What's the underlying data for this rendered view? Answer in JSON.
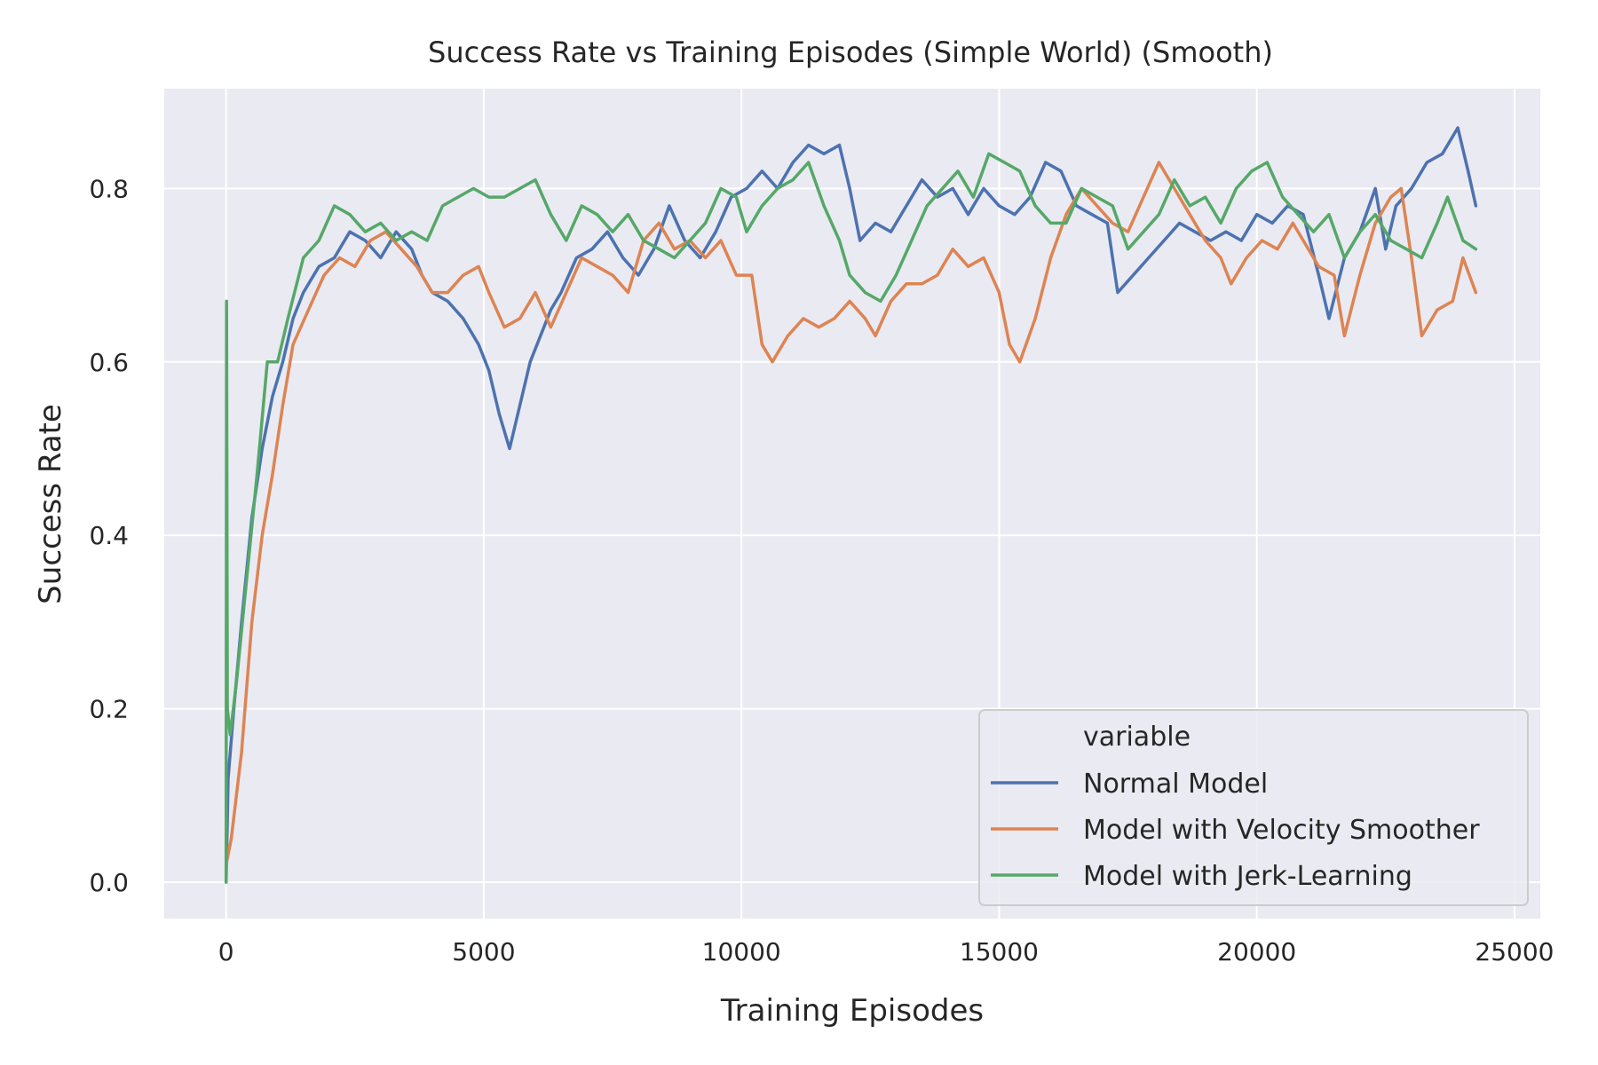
{
  "chart_data": {
    "type": "line",
    "title": "Success Rate vs Training Episodes (Simple World) (Smooth)",
    "xlabel": "Training Episodes",
    "ylabel": "Success Rate",
    "xlim": [
      -1200,
      25500
    ],
    "ylim": [
      -0.042,
      0.915
    ],
    "xticks": [
      0,
      5000,
      10000,
      15000,
      20000,
      25000
    ],
    "yticks": [
      0.0,
      0.2,
      0.4,
      0.6,
      0.8
    ],
    "grid": true,
    "background_color": "#eaeaf2",
    "legend": {
      "title": "variable",
      "placement": "lower-right"
    },
    "series": [
      {
        "name": "Normal Model",
        "color": "#4c72b0",
        "points": [
          [
            0,
            0.0
          ],
          [
            40,
            0.12
          ],
          [
            150,
            0.2
          ],
          [
            300,
            0.3
          ],
          [
            500,
            0.42
          ],
          [
            700,
            0.5
          ],
          [
            900,
            0.56
          ],
          [
            1100,
            0.6
          ],
          [
            1300,
            0.65
          ],
          [
            1500,
            0.68
          ],
          [
            1800,
            0.71
          ],
          [
            2100,
            0.72
          ],
          [
            2400,
            0.75
          ],
          [
            2700,
            0.74
          ],
          [
            3000,
            0.72
          ],
          [
            3300,
            0.75
          ],
          [
            3600,
            0.73
          ],
          [
            3800,
            0.7
          ],
          [
            4000,
            0.68
          ],
          [
            4300,
            0.67
          ],
          [
            4600,
            0.65
          ],
          [
            4900,
            0.62
          ],
          [
            5100,
            0.59
          ],
          [
            5300,
            0.54
          ],
          [
            5500,
            0.5
          ],
          [
            5700,
            0.55
          ],
          [
            5900,
            0.6
          ],
          [
            6100,
            0.63
          ],
          [
            6300,
            0.66
          ],
          [
            6500,
            0.68
          ],
          [
            6800,
            0.72
          ],
          [
            7100,
            0.73
          ],
          [
            7400,
            0.75
          ],
          [
            7700,
            0.72
          ],
          [
            8000,
            0.7
          ],
          [
            8300,
            0.73
          ],
          [
            8600,
            0.78
          ],
          [
            8900,
            0.74
          ],
          [
            9200,
            0.72
          ],
          [
            9500,
            0.75
          ],
          [
            9800,
            0.79
          ],
          [
            10100,
            0.8
          ],
          [
            10400,
            0.82
          ],
          [
            10700,
            0.8
          ],
          [
            11000,
            0.83
          ],
          [
            11300,
            0.85
          ],
          [
            11600,
            0.84
          ],
          [
            11900,
            0.85
          ],
          [
            12100,
            0.8
          ],
          [
            12300,
            0.74
          ],
          [
            12600,
            0.76
          ],
          [
            12900,
            0.75
          ],
          [
            13200,
            0.78
          ],
          [
            13500,
            0.81
          ],
          [
            13800,
            0.79
          ],
          [
            14100,
            0.8
          ],
          [
            14400,
            0.77
          ],
          [
            14700,
            0.8
          ],
          [
            15000,
            0.78
          ],
          [
            15300,
            0.77
          ],
          [
            15600,
            0.79
          ],
          [
            15900,
            0.83
          ],
          [
            16200,
            0.82
          ],
          [
            16500,
            0.78
          ],
          [
            16800,
            0.77
          ],
          [
            17100,
            0.76
          ],
          [
            17300,
            0.68
          ],
          [
            17600,
            0.7
          ],
          [
            17900,
            0.72
          ],
          [
            18200,
            0.74
          ],
          [
            18500,
            0.76
          ],
          [
            18800,
            0.75
          ],
          [
            19100,
            0.74
          ],
          [
            19400,
            0.75
          ],
          [
            19700,
            0.74
          ],
          [
            20000,
            0.77
          ],
          [
            20300,
            0.76
          ],
          [
            20600,
            0.78
          ],
          [
            20900,
            0.77
          ],
          [
            21200,
            0.7
          ],
          [
            21400,
            0.65
          ],
          [
            21700,
            0.72
          ],
          [
            22000,
            0.75
          ],
          [
            22300,
            0.8
          ],
          [
            22500,
            0.73
          ],
          [
            22700,
            0.78
          ],
          [
            23000,
            0.8
          ],
          [
            23300,
            0.83
          ],
          [
            23600,
            0.84
          ],
          [
            23900,
            0.87
          ],
          [
            24100,
            0.82
          ],
          [
            24250,
            0.78
          ]
        ]
      },
      {
        "name": "Model with Velocity Smoother",
        "color": "#dd8452",
        "points": [
          [
            0,
            0.02
          ],
          [
            100,
            0.05
          ],
          [
            300,
            0.15
          ],
          [
            500,
            0.3
          ],
          [
            700,
            0.4
          ],
          [
            900,
            0.47
          ],
          [
            1100,
            0.55
          ],
          [
            1300,
            0.62
          ],
          [
            1600,
            0.66
          ],
          [
            1900,
            0.7
          ],
          [
            2200,
            0.72
          ],
          [
            2500,
            0.71
          ],
          [
            2800,
            0.74
          ],
          [
            3100,
            0.75
          ],
          [
            3400,
            0.73
          ],
          [
            3700,
            0.71
          ],
          [
            4000,
            0.68
          ],
          [
            4300,
            0.68
          ],
          [
            4600,
            0.7
          ],
          [
            4900,
            0.71
          ],
          [
            5100,
            0.68
          ],
          [
            5400,
            0.64
          ],
          [
            5700,
            0.65
          ],
          [
            6000,
            0.68
          ],
          [
            6300,
            0.64
          ],
          [
            6600,
            0.68
          ],
          [
            6900,
            0.72
          ],
          [
            7200,
            0.71
          ],
          [
            7500,
            0.7
          ],
          [
            7800,
            0.68
          ],
          [
            8100,
            0.74
          ],
          [
            8400,
            0.76
          ],
          [
            8700,
            0.73
          ],
          [
            9000,
            0.74
          ],
          [
            9300,
            0.72
          ],
          [
            9600,
            0.74
          ],
          [
            9900,
            0.7
          ],
          [
            10200,
            0.7
          ],
          [
            10400,
            0.62
          ],
          [
            10600,
            0.6
          ],
          [
            10900,
            0.63
          ],
          [
            11200,
            0.65
          ],
          [
            11500,
            0.64
          ],
          [
            11800,
            0.65
          ],
          [
            12100,
            0.67
          ],
          [
            12400,
            0.65
          ],
          [
            12600,
            0.63
          ],
          [
            12900,
            0.67
          ],
          [
            13200,
            0.69
          ],
          [
            13500,
            0.69
          ],
          [
            13800,
            0.7
          ],
          [
            14100,
            0.73
          ],
          [
            14400,
            0.71
          ],
          [
            14700,
            0.72
          ],
          [
            15000,
            0.68
          ],
          [
            15200,
            0.62
          ],
          [
            15400,
            0.6
          ],
          [
            15700,
            0.65
          ],
          [
            16000,
            0.72
          ],
          [
            16300,
            0.77
          ],
          [
            16600,
            0.8
          ],
          [
            16900,
            0.78
          ],
          [
            17200,
            0.76
          ],
          [
            17500,
            0.75
          ],
          [
            17800,
            0.79
          ],
          [
            18100,
            0.83
          ],
          [
            18400,
            0.8
          ],
          [
            18700,
            0.77
          ],
          [
            19000,
            0.74
          ],
          [
            19300,
            0.72
          ],
          [
            19500,
            0.69
          ],
          [
            19800,
            0.72
          ],
          [
            20100,
            0.74
          ],
          [
            20400,
            0.73
          ],
          [
            20700,
            0.76
          ],
          [
            20900,
            0.74
          ],
          [
            21200,
            0.71
          ],
          [
            21500,
            0.7
          ],
          [
            21700,
            0.63
          ],
          [
            22000,
            0.7
          ],
          [
            22300,
            0.76
          ],
          [
            22600,
            0.79
          ],
          [
            22800,
            0.8
          ],
          [
            23000,
            0.72
          ],
          [
            23200,
            0.63
          ],
          [
            23500,
            0.66
          ],
          [
            23800,
            0.67
          ],
          [
            24000,
            0.72
          ],
          [
            24250,
            0.68
          ]
        ]
      },
      {
        "name": "Model with Jerk-Learning",
        "color": "#55a868",
        "points": [
          [
            0,
            0.0
          ],
          [
            10,
            0.67
          ],
          [
            25,
            0.2
          ],
          [
            80,
            0.17
          ],
          [
            200,
            0.23
          ],
          [
            400,
            0.35
          ],
          [
            600,
            0.47
          ],
          [
            800,
            0.6
          ],
          [
            1000,
            0.6
          ],
          [
            1200,
            0.65
          ],
          [
            1500,
            0.72
          ],
          [
            1800,
            0.74
          ],
          [
            2100,
            0.78
          ],
          [
            2400,
            0.77
          ],
          [
            2700,
            0.75
          ],
          [
            3000,
            0.76
          ],
          [
            3300,
            0.74
          ],
          [
            3600,
            0.75
          ],
          [
            3900,
            0.74
          ],
          [
            4200,
            0.78
          ],
          [
            4500,
            0.79
          ],
          [
            4800,
            0.8
          ],
          [
            5100,
            0.79
          ],
          [
            5400,
            0.79
          ],
          [
            5700,
            0.8
          ],
          [
            6000,
            0.81
          ],
          [
            6300,
            0.77
          ],
          [
            6600,
            0.74
          ],
          [
            6900,
            0.78
          ],
          [
            7200,
            0.77
          ],
          [
            7500,
            0.75
          ],
          [
            7800,
            0.77
          ],
          [
            8100,
            0.74
          ],
          [
            8400,
            0.73
          ],
          [
            8700,
            0.72
          ],
          [
            9000,
            0.74
          ],
          [
            9300,
            0.76
          ],
          [
            9600,
            0.8
          ],
          [
            9900,
            0.79
          ],
          [
            10100,
            0.75
          ],
          [
            10400,
            0.78
          ],
          [
            10700,
            0.8
          ],
          [
            11000,
            0.81
          ],
          [
            11300,
            0.83
          ],
          [
            11600,
            0.78
          ],
          [
            11900,
            0.74
          ],
          [
            12100,
            0.7
          ],
          [
            12400,
            0.68
          ],
          [
            12700,
            0.67
          ],
          [
            13000,
            0.7
          ],
          [
            13300,
            0.74
          ],
          [
            13600,
            0.78
          ],
          [
            13900,
            0.8
          ],
          [
            14200,
            0.82
          ],
          [
            14500,
            0.79
          ],
          [
            14800,
            0.84
          ],
          [
            15100,
            0.83
          ],
          [
            15400,
            0.82
          ],
          [
            15700,
            0.78
          ],
          [
            16000,
            0.76
          ],
          [
            16300,
            0.76
          ],
          [
            16600,
            0.8
          ],
          [
            16900,
            0.79
          ],
          [
            17200,
            0.78
          ],
          [
            17500,
            0.73
          ],
          [
            17800,
            0.75
          ],
          [
            18100,
            0.77
          ],
          [
            18400,
            0.81
          ],
          [
            18700,
            0.78
          ],
          [
            19000,
            0.79
          ],
          [
            19300,
            0.76
          ],
          [
            19600,
            0.8
          ],
          [
            19900,
            0.82
          ],
          [
            20200,
            0.83
          ],
          [
            20500,
            0.79
          ],
          [
            20800,
            0.77
          ],
          [
            21100,
            0.75
          ],
          [
            21400,
            0.77
          ],
          [
            21700,
            0.72
          ],
          [
            22000,
            0.75
          ],
          [
            22300,
            0.77
          ],
          [
            22600,
            0.74
          ],
          [
            22900,
            0.73
          ],
          [
            23200,
            0.72
          ],
          [
            23500,
            0.76
          ],
          [
            23700,
            0.79
          ],
          [
            24000,
            0.74
          ],
          [
            24250,
            0.73
          ]
        ]
      }
    ]
  }
}
